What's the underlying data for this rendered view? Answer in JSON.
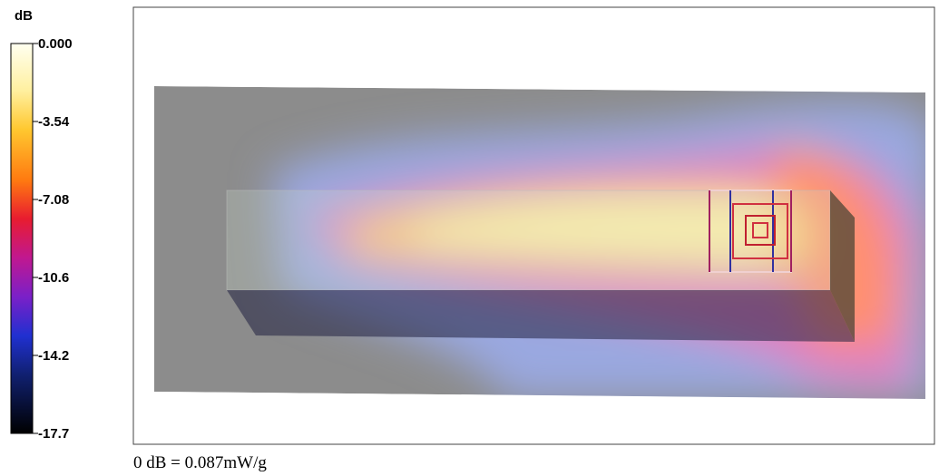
{
  "colorbar": {
    "unit": "dB",
    "ticks": [
      "0.000",
      "-3.54",
      "-7.08",
      "-10.6",
      "-14.2",
      "-17.7"
    ]
  },
  "caption": "0 dB = 0.087mW/g"
}
